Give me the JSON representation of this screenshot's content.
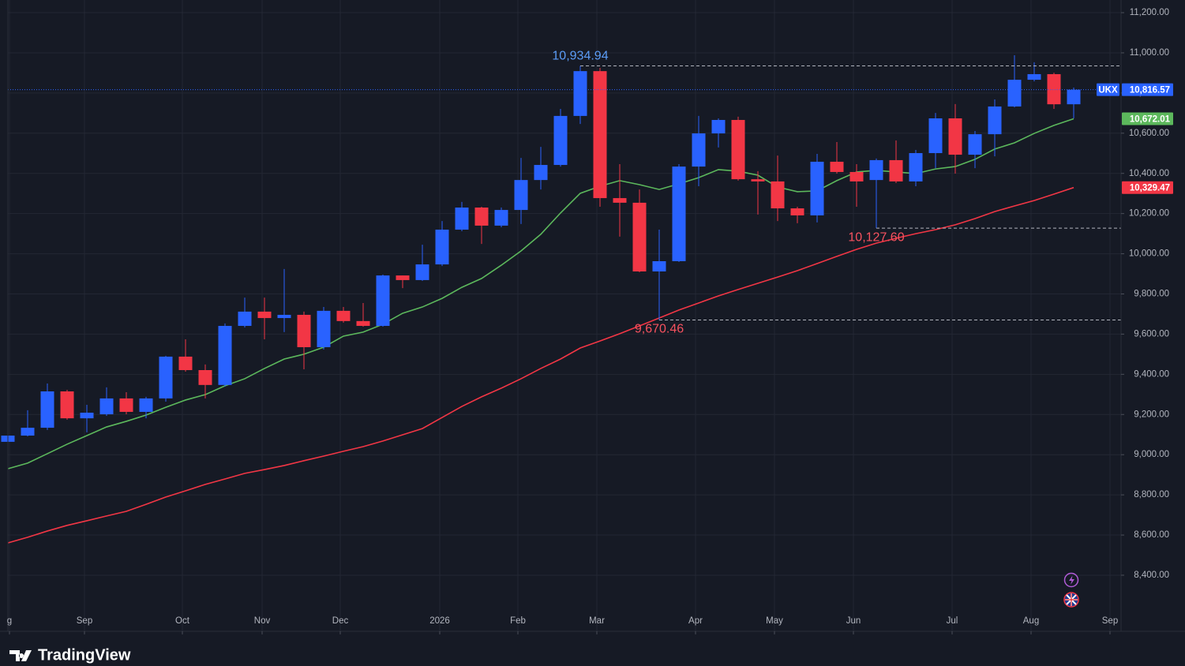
{
  "chart_data": {
    "type": "candlestick",
    "symbol": "UKX",
    "open": [
      9064,
      9095,
      9134,
      9315,
      9181,
      9201,
      9280,
      9213,
      9280,
      9488,
      9421,
      9347,
      9641,
      9712,
      9680,
      9696,
      9535,
      9716,
      9665,
      9641,
      9892,
      9869,
      9947,
      10120,
      10230,
      10140,
      10218,
      10367,
      10442,
      10686,
      10909,
      10277,
      10254,
      9912,
      9963,
      10434,
      10599,
      10666,
      10371,
      10360,
      10226,
      10191,
      10458,
      10407,
      10367,
      10466,
      10360,
      10501,
      10674,
      10493,
      10595,
      10733,
      10866,
      10894,
      10744
    ],
    "high": [
      9111,
      9221,
      9354,
      9323,
      9248,
      9335,
      9311,
      9288,
      9492,
      9574,
      9449,
      9653,
      9782,
      9782,
      9924,
      9712,
      9735,
      9735,
      9755,
      9896,
      9892,
      10045,
      10163,
      10258,
      10234,
      10230,
      10477,
      10532,
      10721,
      10934.94,
      10925,
      10446,
      10320,
      10120,
      10446,
      10686,
      10674,
      10682,
      10411,
      10489,
      10234,
      10497,
      10556,
      10446,
      10474,
      10564,
      10517,
      10701,
      10745,
      10611,
      10768,
      10988,
      10953,
      10901,
      10827
    ],
    "low": [
      9056,
      9091,
      9123,
      9174,
      9111,
      9193,
      9201,
      9181,
      9264,
      9413,
      9280,
      9339,
      9633,
      9574,
      9610,
      9425,
      9523,
      9657,
      9637,
      9637,
      9829,
      9865,
      9939,
      10112,
      10049,
      10132,
      10148,
      10320,
      10434,
      10646,
      10234,
      10085,
      9908,
      9670.46,
      9959,
      10336,
      10529,
      10364,
      10195,
      10163,
      10152,
      10156,
      10399,
      10234,
      10127.6,
      10352,
      10336,
      10426,
      10399,
      10426,
      10485,
      10729,
      10858,
      10721,
      10674
    ],
    "close": [
      9095,
      9134,
      9315,
      9181,
      9209,
      9280,
      9213,
      9280,
      9488,
      9421,
      9347,
      9641,
      9712,
      9680,
      9696,
      9535,
      9716,
      9665,
      9641,
      9892,
      9869,
      9947,
      10120,
      10230,
      10140,
      10218,
      10367,
      10442,
      10686,
      10909,
      10277,
      10254,
      9912,
      9963,
      10434,
      10599,
      10666,
      10371,
      10360,
      10226,
      10191,
      10458,
      10407,
      10360,
      10466,
      10360,
      10501,
      10674,
      10493,
      10595,
      10733,
      10866,
      10894,
      10744,
      10816.57
    ],
    "close_last_label": "10,816.57",
    "up_color": "#2962ff",
    "down_color": "#f23645",
    "moving_averages": [
      {
        "color": "#5cb85c",
        "last_label": "10,672.01",
        "values": [
          8930,
          8958,
          9005,
          9052,
          9095,
          9138,
          9166,
          9197,
          9236,
          9272,
          9299,
          9343,
          9378,
          9429,
          9476,
          9500,
          9535,
          9590,
          9610,
          9649,
          9704,
          9735,
          9778,
          9833,
          9877,
          9943,
          10014,
          10097,
          10203,
          10301,
          10336,
          10364,
          10344,
          10320,
          10348,
          10379,
          10419,
          10411,
          10391,
          10332,
          10309,
          10313,
          10364,
          10407,
          10415,
          10407,
          10399,
          10422,
          10434,
          10470,
          10521,
          10552,
          10599,
          10639,
          10672.01
        ]
      },
      {
        "color": "#f23645",
        "last_label": "10,329.47",
        "values": [
          8561,
          8589,
          8620,
          8648,
          8671,
          8695,
          8718,
          8753,
          8789,
          8820,
          8852,
          8879,
          8907,
          8926,
          8946,
          8970,
          8993,
          9017,
          9040,
          9068,
          9099,
          9130,
          9185,
          9240,
          9288,
          9331,
          9378,
          9429,
          9476,
          9531,
          9566,
          9602,
          9641,
          9680,
          9720,
          9755,
          9790,
          9822,
          9853,
          9884,
          9916,
          9951,
          9987,
          10022,
          10053,
          10077,
          10100,
          10120,
          10144,
          10175,
          10210,
          10238,
          10265,
          10297,
          10329.47
        ]
      }
    ],
    "annotations": [
      {
        "label": "10,934.94",
        "value": 10934.94,
        "x": 29,
        "position": "above",
        "color": "#5b9cf6"
      },
      {
        "label": "9,670.46",
        "value": 9670.46,
        "x": 33,
        "position": "below",
        "color": "#f7525f"
      },
      {
        "label": "10,127.60",
        "value": 10127.6,
        "x": 44,
        "position": "below",
        "color": "#f7525f"
      }
    ],
    "xlim": [
      -0.08,
      56.32
    ],
    "xticks": [
      {
        "value": 0.08,
        "label": "g"
      },
      {
        "value": 3.88,
        "label": "Sep"
      },
      {
        "value": 8.84,
        "label": "Oct"
      },
      {
        "value": 12.88,
        "label": "Nov"
      },
      {
        "value": 16.84,
        "label": "Dec"
      },
      {
        "value": 21.88,
        "label": "2026"
      },
      {
        "value": 25.84,
        "label": "Feb"
      },
      {
        "value": 29.84,
        "label": "Mar"
      },
      {
        "value": 34.84,
        "label": "Apr"
      },
      {
        "value": 38.84,
        "label": "May"
      },
      {
        "value": 42.84,
        "label": "Jun"
      },
      {
        "value": 47.84,
        "label": "Jul"
      },
      {
        "value": 51.84,
        "label": "Aug"
      },
      {
        "value": 55.84,
        "label": "Sep"
      }
    ],
    "ylim": [
      8121,
      11263
    ],
    "yticks": [
      {
        "value": 8400,
        "label": "8,400.00"
      },
      {
        "value": 8600,
        "label": "8,600.00"
      },
      {
        "value": 8800,
        "label": "8,800.00"
      },
      {
        "value": 9000,
        "label": "9,000.00"
      },
      {
        "value": 9200,
        "label": "9,200.00"
      },
      {
        "value": 9400,
        "label": "9,400.00"
      },
      {
        "value": 9600,
        "label": "9,600.00"
      },
      {
        "value": 9800,
        "label": "9,800.00"
      },
      {
        "value": 10000,
        "label": "10,000.00"
      },
      {
        "value": 10200,
        "label": "10,200.00"
      },
      {
        "value": 10400,
        "label": "10,400.00"
      },
      {
        "value": 10600,
        "label": "10,600.00"
      },
      {
        "value": 10800,
        "label": "10,800.00"
      },
      {
        "value": 11000,
        "label": "11,000.00"
      },
      {
        "value": 11200,
        "label": "11,200.00"
      }
    ],
    "grid": true
  },
  "brand": "TradingView"
}
